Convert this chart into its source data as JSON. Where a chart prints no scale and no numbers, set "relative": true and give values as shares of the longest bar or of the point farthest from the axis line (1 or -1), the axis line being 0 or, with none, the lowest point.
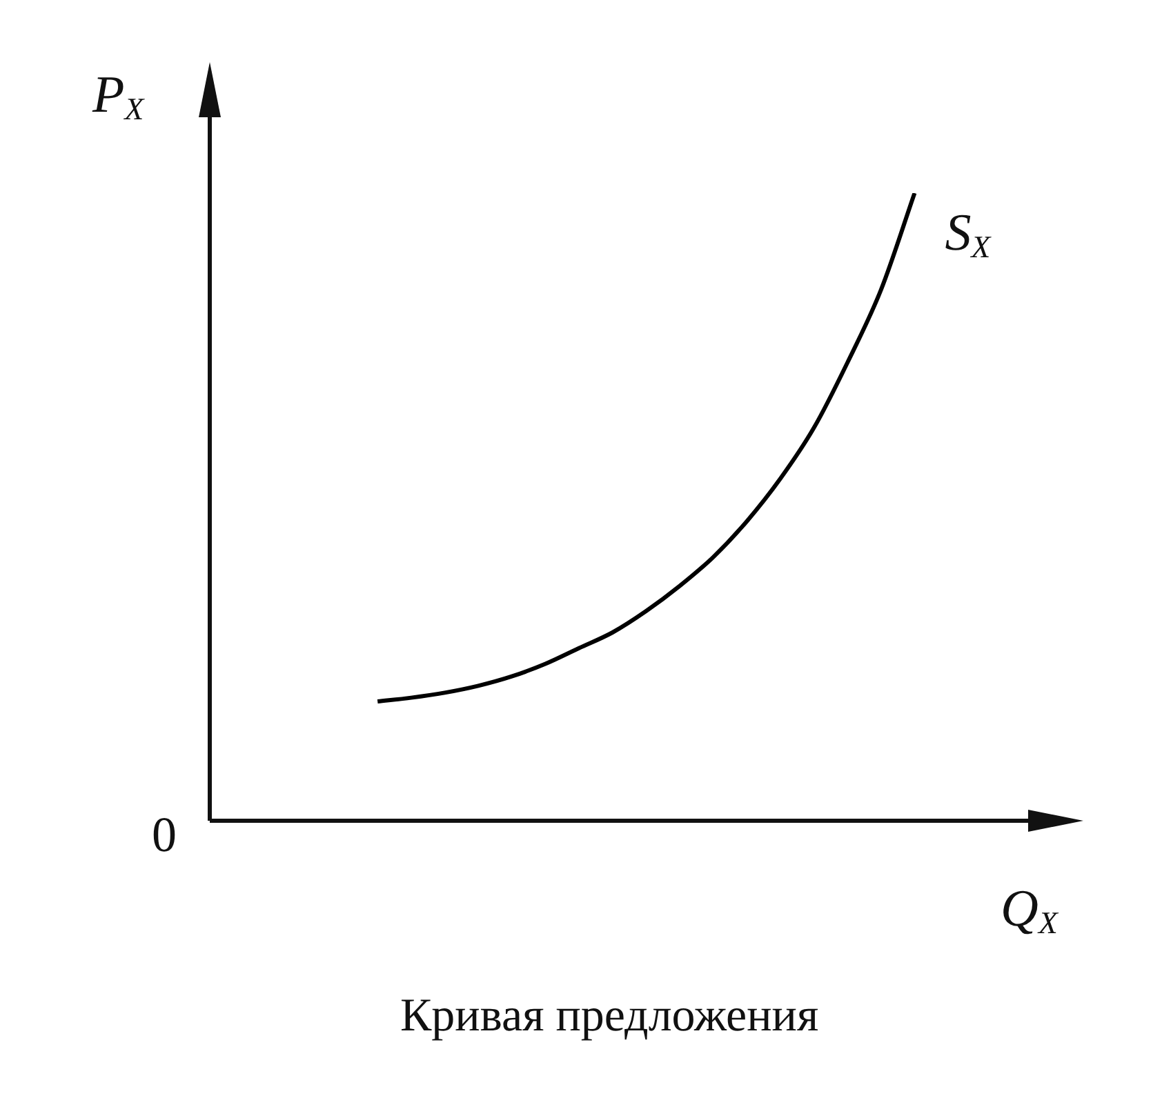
{
  "chart_data": {
    "type": "line",
    "title": "Кривая предложения",
    "xlabel": "Q$_{X}$",
    "ylabel": "P$_{X}$",
    "annotations": [
      "0"
    ],
    "relative": true,
    "marker": "none",
    "categories": [
      null,
      null,
      null,
      null,
      null,
      null,
      null,
      null,
      null,
      null,
      null,
      null,
      null,
      null,
      null,
      null,
      null,
      null,
      null,
      null,
      null,
      null,
      null,
      null,
      null,
      null
    ],
    "series": [
      {
        "name": "S$_{X}$",
        "color": "#000000",
        "values": [
          null,
          null,
          null,
          null,
          null,
          0.19,
          0.196,
          0.204,
          0.215,
          0.23,
          0.25,
          0.275,
          0.3,
          0.334,
          0.374,
          0.42,
          0.477,
          0.545,
          0.626,
          0.73,
          0.846,
          1.0,
          null,
          null,
          null,
          null
        ]
      }
    ]
  }
}
